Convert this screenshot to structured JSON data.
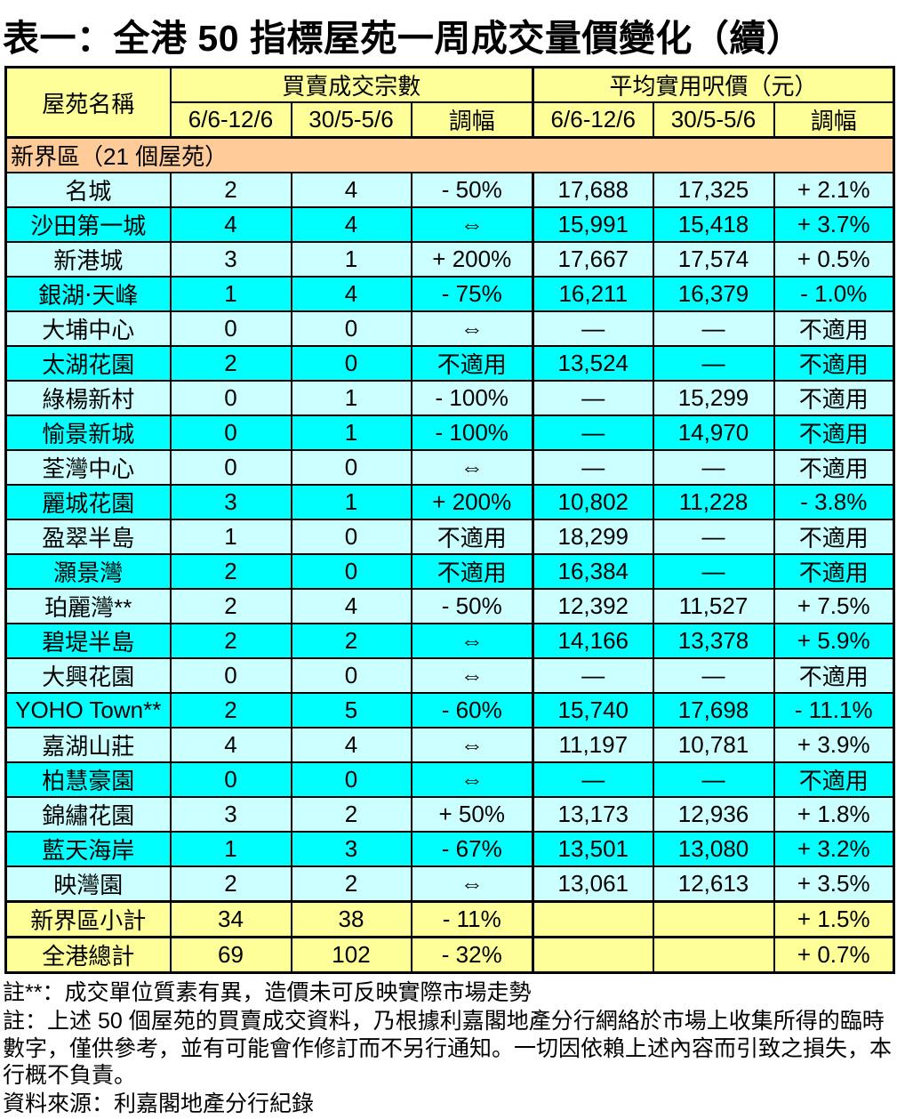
{
  "title": "表一：全港 50 指標屋苑一周成交量價變化（續）",
  "colors": {
    "header_yellow": "#FFFF99",
    "section_orange": "#FFCC99",
    "row_light_cyan": "#CCFFFF",
    "row_bright_cyan": "#00FFFF",
    "border_black": "#000000"
  },
  "table": {
    "header": {
      "estate": "屋苑名稱",
      "group1": "買賣成交宗數",
      "group2": "平均實用呎價（元）",
      "sub": [
        "6/6-12/6",
        "30/5-5/6",
        "調幅",
        "6/6-12/6",
        "30/5-5/6",
        "調幅"
      ]
    },
    "section_label": "新界區（21 個屋苑）",
    "rows": [
      {
        "name": "名城",
        "cells": [
          "2",
          "4",
          "- 50%",
          "17,688",
          "17,325",
          "+ 2.1%"
        ]
      },
      {
        "name": "沙田第一城",
        "cells": [
          "4",
          "4",
          "⇔",
          "15,991",
          "15,418",
          "+ 3.7%"
        ]
      },
      {
        "name": "新港城",
        "cells": [
          "3",
          "1",
          "+ 200%",
          "17,667",
          "17,574",
          "+ 0.5%"
        ]
      },
      {
        "name": "銀湖‧天峰",
        "cells": [
          "1",
          "4",
          "- 75%",
          "16,211",
          "16,379",
          "- 1.0%"
        ]
      },
      {
        "name": "大埔中心",
        "cells": [
          "0",
          "0",
          "⇔",
          "—",
          "—",
          "不適用"
        ]
      },
      {
        "name": "太湖花園",
        "cells": [
          "2",
          "0",
          "不適用",
          "13,524",
          "—",
          "不適用"
        ]
      },
      {
        "name": "綠楊新村",
        "cells": [
          "0",
          "1",
          "- 100%",
          "—",
          "15,299",
          "不適用"
        ]
      },
      {
        "name": "愉景新城",
        "cells": [
          "0",
          "1",
          "- 100%",
          "—",
          "14,970",
          "不適用"
        ]
      },
      {
        "name": "荃灣中心",
        "cells": [
          "0",
          "0",
          "⇔",
          "—",
          "—",
          "不適用"
        ]
      },
      {
        "name": "麗城花園",
        "cells": [
          "3",
          "1",
          "+ 200%",
          "10,802",
          "11,228",
          "- 3.8%"
        ]
      },
      {
        "name": "盈翠半島",
        "cells": [
          "1",
          "0",
          "不適用",
          "18,299",
          "—",
          "不適用"
        ]
      },
      {
        "name": "灝景灣",
        "cells": [
          "2",
          "0",
          "不適用",
          "16,384",
          "—",
          "不適用"
        ]
      },
      {
        "name": "珀麗灣**",
        "cells": [
          "2",
          "4",
          "- 50%",
          "12,392",
          "11,527",
          "+ 7.5%"
        ]
      },
      {
        "name": "碧堤半島",
        "cells": [
          "2",
          "2",
          "⇔",
          "14,166",
          "13,378",
          "+ 5.9%"
        ]
      },
      {
        "name": "大興花園",
        "cells": [
          "0",
          "0",
          "⇔",
          "—",
          "—",
          "不適用"
        ]
      },
      {
        "name": "YOHO Town**",
        "cells": [
          "2",
          "5",
          "- 60%",
          "15,740",
          "17,698",
          "- 11.1%"
        ]
      },
      {
        "name": "嘉湖山莊",
        "cells": [
          "4",
          "4",
          "⇔",
          "11,197",
          "10,781",
          "+ 3.9%"
        ]
      },
      {
        "name": "柏慧豪園",
        "cells": [
          "0",
          "0",
          "⇔",
          "—",
          "—",
          "不適用"
        ]
      },
      {
        "name": "錦繡花園",
        "cells": [
          "3",
          "2",
          "+ 50%",
          "13,173",
          "12,936",
          "+ 1.8%"
        ]
      },
      {
        "name": "藍天海岸",
        "cells": [
          "1",
          "3",
          "- 67%",
          "13,501",
          "13,080",
          "+ 3.2%"
        ]
      },
      {
        "name": "映灣園",
        "cells": [
          "2",
          "2",
          "⇔",
          "13,061",
          "12,613",
          "+ 3.5%"
        ]
      }
    ],
    "subtotal": {
      "label": "新界區小計",
      "cells": [
        "34",
        "38",
        "- 11%",
        "",
        "",
        "+ 1.5%"
      ]
    },
    "total": {
      "label": "全港總計",
      "cells": [
        "69",
        "102",
        "- 32%",
        "",
        "",
        "+ 0.7%"
      ]
    }
  },
  "notes": {
    "asterisk": "註**：成交單位質素有異，造價未可反映實際市場走勢",
    "disclaimer": "註：上述 50 個屋苑的買賣成交資料，乃根據利嘉閣地產分行網絡於市場上收集所得的臨時數字，僅供參考，並有可能會作修訂而不另行通知。一切因依賴上述內容而引致之損失，本行概不負責。",
    "source": "資料來源：利嘉閣地產分行紀錄"
  }
}
